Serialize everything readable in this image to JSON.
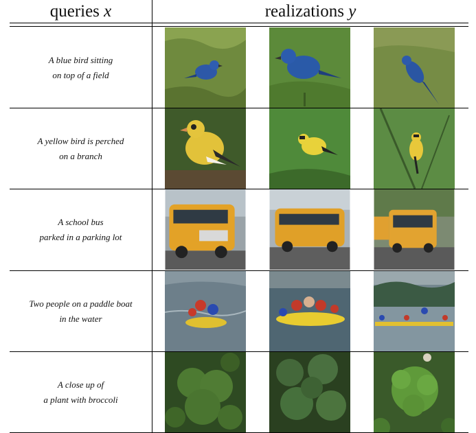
{
  "header": {
    "queries_label": "queries",
    "queries_var": "x",
    "realizations_label": "realizations",
    "realizations_var": "y"
  },
  "rows": [
    {
      "line1": "A blue bird sitting",
      "line2": "on top of a field",
      "images": [
        "blue bird on grass",
        "blue bird on grass",
        "blue bird on grass"
      ]
    },
    {
      "line1": "A yellow bird is perched",
      "line2": "on a branch",
      "images": [
        "yellow bird on branch",
        "yellow bird on branch",
        "yellow bird on branch"
      ]
    },
    {
      "line1": "A school bus",
      "line2": "parked in a parking lot",
      "images": [
        "yellow school bus",
        "yellow school bus",
        "yellow school bus"
      ]
    },
    {
      "line1": "Two people on a paddle boat",
      "line2": "in the water",
      "images": [
        "people in boat on water",
        "people in boat on water",
        "people in boat on water"
      ]
    },
    {
      "line1": "A close up of",
      "line2": "a plant with broccoli",
      "images": [
        "broccoli close up",
        "broccoli close up",
        "broccoli close up"
      ]
    }
  ]
}
